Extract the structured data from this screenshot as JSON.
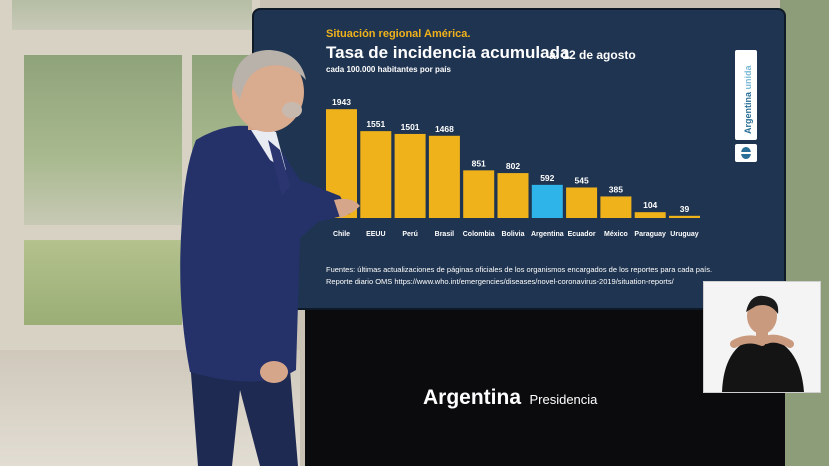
{
  "header": {
    "subtitle": "Situación regional América.",
    "title": "Tasa de incidencia acumulada",
    "title_date": "al 12 de agosto",
    "per_capita_note": "cada 100.000 habitantes por país"
  },
  "sources": {
    "line1": "Fuentes: últimas actualizaciones de páginas oficiales de los organismos encargados de los reportes para cada país.",
    "line2": "Reporte diario OMS https://www.who.int/emergencies/diseases/novel-coronavirus-2019/situation-reports/"
  },
  "side_brand": {
    "main": "Argentina",
    "secondary": "unida"
  },
  "footer": {
    "brand": "Argentina",
    "sub": "Presidencia"
  },
  "colors": {
    "bar_default": "#f0b21b",
    "bar_highlight": "#2eb4e8",
    "screen_bg": "#1f3450",
    "text": "#ffffff"
  },
  "chart_data": {
    "type": "bar",
    "title": "Tasa de incidencia acumulada",
    "categories": [
      "Chile",
      "EEUU",
      "Perú",
      "Brasil",
      "Colombia",
      "Bolivia",
      "Argentina",
      "Ecuador",
      "México",
      "Paraguay",
      "Uruguay"
    ],
    "values": [
      1943,
      1551,
      1501,
      1468,
      851,
      802,
      592,
      545,
      385,
      104,
      39
    ],
    "highlight": "Argentina",
    "ylim": [
      0,
      2000
    ],
    "grid": false,
    "legend": "none"
  }
}
